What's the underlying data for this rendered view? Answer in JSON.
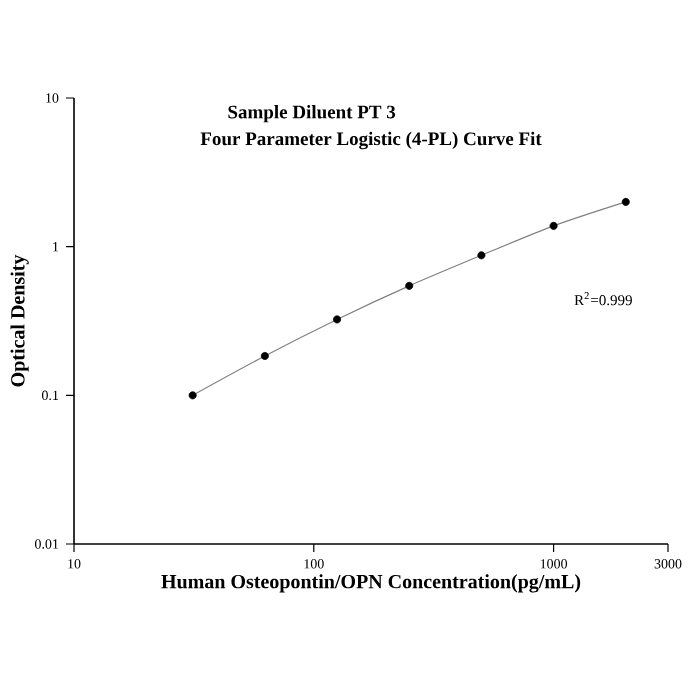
{
  "chart_data": {
    "type": "scatter",
    "title": "Sample Diluent PT 3",
    "subtitle": "Four Parameter Logistic (4-PL) Curve Fit",
    "xlabel": "Human Osteopontin/OPN Concentration(pg/mL)",
    "ylabel": "Optical Density",
    "log": "xy",
    "grid": false,
    "xlim": [
      10,
      3000
    ],
    "xticks": [
      10,
      100,
      1000,
      3000
    ],
    "ylim": [
      0.01,
      10
    ],
    "yticks": [
      0.01,
      0.1,
      1,
      10
    ],
    "annotations": [
      "R$^{2}$=0.999"
    ],
    "series": [
      {
        "type": "line",
        "marker": "none",
        "color": "#808080",
        "x": [
          31.25,
          62.5,
          125,
          250,
          500,
          1000,
          2000
        ],
        "values": [
          0.1,
          0.184,
          0.324,
          0.545,
          0.875,
          1.38,
          2.0
        ]
      },
      {
        "marker": "circle",
        "color": "#000000",
        "x": [
          31.25,
          62.5,
          125,
          250,
          500,
          1000,
          2000
        ],
        "values": [
          0.1,
          0.184,
          0.324,
          0.545,
          0.875,
          1.38,
          2.0
        ]
      }
    ]
  }
}
